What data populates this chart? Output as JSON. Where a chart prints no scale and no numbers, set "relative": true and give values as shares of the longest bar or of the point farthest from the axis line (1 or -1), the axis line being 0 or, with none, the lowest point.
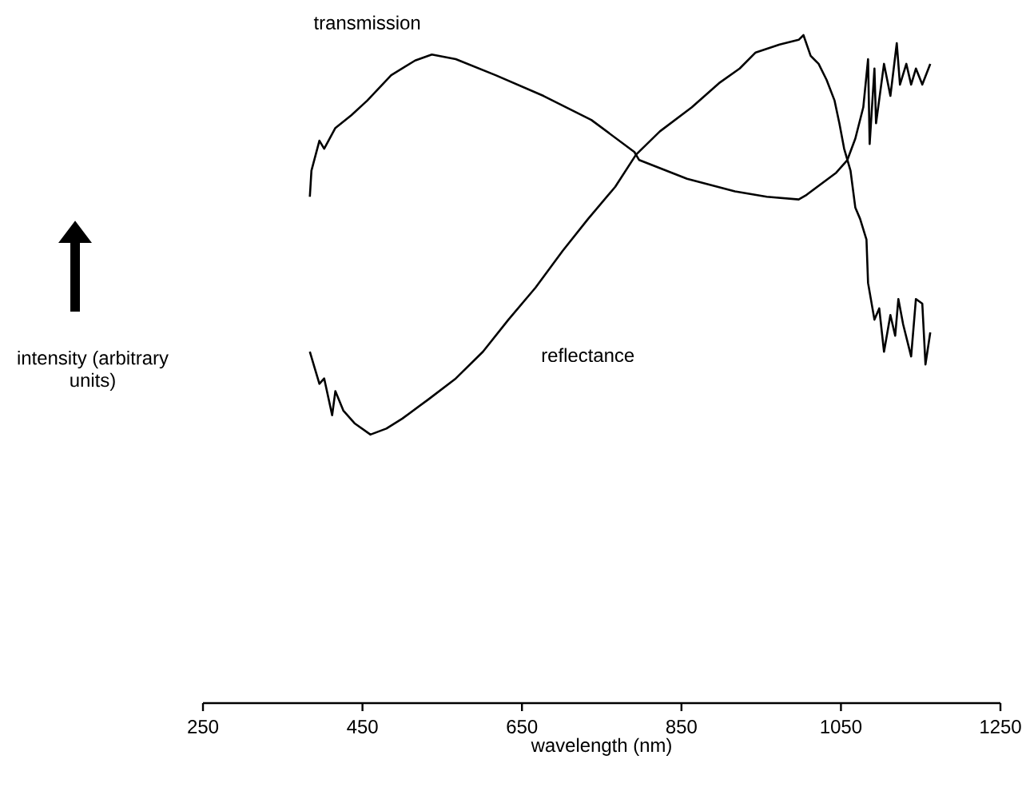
{
  "chart_data": {
    "type": "line",
    "xlabel": "wavelength (nm)",
    "ylabel": "intensity (arbitrary units)",
    "relative": true,
    "xlim": [
      250,
      1250
    ],
    "xticks": [
      250,
      450,
      650,
      850,
      1050,
      1250
    ],
    "series": [
      {
        "name": "transmission",
        "color": "#000000",
        "x": [
          384,
          386,
          396,
          402,
          416,
          436,
          456,
          486,
          516,
          537,
          567,
          617,
          677,
          737,
          791,
          797,
          857,
          917,
          957,
          997,
          1007,
          1044,
          1058,
          1068,
          1078,
          1084,
          1086,
          1092,
          1094,
          1104,
          1112,
          1120,
          1124,
          1132,
          1138,
          1144,
          1152,
          1162
        ],
        "values": [
          0.758,
          0.797,
          0.842,
          0.83,
          0.861,
          0.88,
          0.902,
          0.94,
          0.962,
          0.971,
          0.964,
          0.94,
          0.909,
          0.873,
          0.825,
          0.813,
          0.785,
          0.766,
          0.758,
          0.754,
          0.761,
          0.794,
          0.813,
          0.845,
          0.892,
          0.964,
          0.837,
          0.95,
          0.868,
          0.957,
          0.909,
          0.988,
          0.926,
          0.957,
          0.926,
          0.95,
          0.926,
          0.957
        ]
      },
      {
        "name": "reflectance",
        "color": "#000000",
        "x": [
          384,
          390,
          396,
          402,
          412,
          416,
          426,
          440,
          460,
          480,
          500,
          533,
          567,
          601,
          633,
          667,
          701,
          733,
          767,
          793,
          823,
          863,
          897,
          923,
          943,
          973,
          997,
          1003,
          1012,
          1022,
          1032,
          1042,
          1048,
          1054,
          1062,
          1068,
          1074,
          1082,
          1084,
          1092,
          1098,
          1104,
          1112,
          1118,
          1122,
          1128,
          1138,
          1144,
          1152,
          1156,
          1162
        ],
        "values": [
          0.526,
          0.502,
          0.478,
          0.486,
          0.431,
          0.467,
          0.438,
          0.419,
          0.402,
          0.411,
          0.426,
          0.455,
          0.486,
          0.526,
          0.574,
          0.622,
          0.677,
          0.725,
          0.773,
          0.821,
          0.856,
          0.892,
          0.928,
          0.95,
          0.974,
          0.986,
          0.993,
          1.0,
          0.969,
          0.957,
          0.933,
          0.902,
          0.868,
          0.83,
          0.797,
          0.742,
          0.725,
          0.694,
          0.629,
          0.574,
          0.591,
          0.526,
          0.581,
          0.55,
          0.605,
          0.567,
          0.519,
          0.605,
          0.598,
          0.507,
          0.555
        ]
      }
    ]
  }
}
